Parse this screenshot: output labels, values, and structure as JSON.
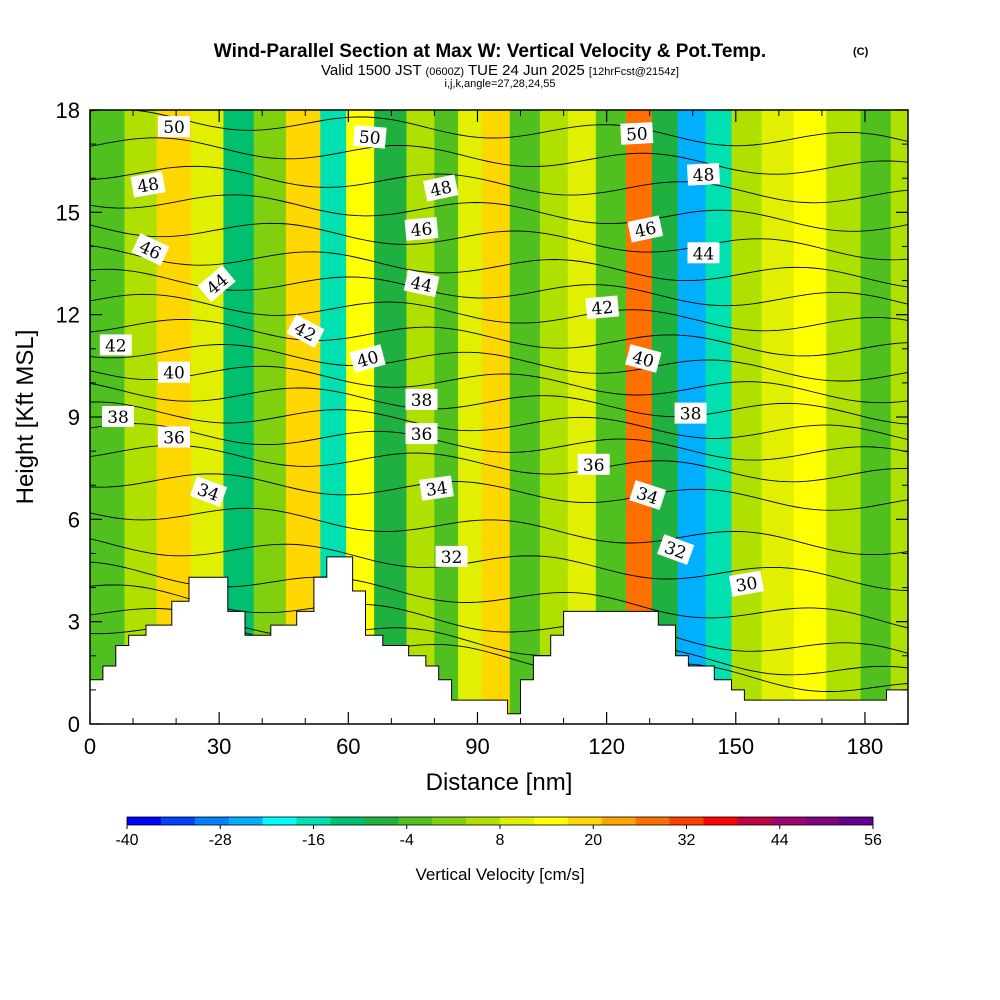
{
  "header": {
    "title": "Wind-Parallel Section at Max W: Vertical Velocity & Pot.Temp.",
    "copyright": "(C)",
    "valid_prefix": "Valid 1500 JST",
    "utc": "(0600Z)",
    "date": "TUE 24 Jun 2025",
    "fcst": "[12hrFcst@2154z]",
    "ijk": "i,j,k,angle=27,28,24,55"
  },
  "chart_data": {
    "type": "heatmap",
    "xlabel": "Distance [nm]",
    "ylabel": "Height [Kft MSL]",
    "xlim": [
      0,
      190
    ],
    "ylim": [
      0,
      18
    ],
    "x_ticks": [
      "0",
      "30",
      "60",
      "90",
      "120",
      "150",
      "180"
    ],
    "y_ticks": [
      "0",
      "3",
      "6",
      "9",
      "12",
      "15",
      "18"
    ],
    "colorbar": {
      "label": "Vertical Velocity [cm/s]",
      "range": [
        -40,
        56
      ],
      "tick_labels": [
        "-40",
        "-28",
        "-16",
        "-4",
        "8",
        "20",
        "32",
        "44",
        "56"
      ],
      "colors": [
        "#0000ff",
        "#0040ff",
        "#0080ff",
        "#00b0ff",
        "#00ffff",
        "#00e0b0",
        "#00c070",
        "#20b040",
        "#50c020",
        "#80d010",
        "#b0e000",
        "#e0f000",
        "#ffff00",
        "#ffd700",
        "#ffa500",
        "#ff7000",
        "#ff4000",
        "#ff0000",
        "#c00040",
        "#a00070",
        "#800080",
        "#600090"
      ]
    },
    "w_columns": [
      {
        "x": 5,
        "w": -2
      },
      {
        "x": 11,
        "w": 4
      },
      {
        "x": 20,
        "w": 18
      },
      {
        "x": 27,
        "w": 8
      },
      {
        "x": 35,
        "w": -10
      },
      {
        "x": 41,
        "w": 2
      },
      {
        "x": 50,
        "w": 20
      },
      {
        "x": 57,
        "w": -14
      },
      {
        "x": 62,
        "w": 16
      },
      {
        "x": 70,
        "w": -6
      },
      {
        "x": 77,
        "w": 6
      },
      {
        "x": 83,
        "w": -4
      },
      {
        "x": 88,
        "w": 8
      },
      {
        "x": 94,
        "w": 18
      },
      {
        "x": 101,
        "w": -4
      },
      {
        "x": 108,
        "w": 4
      },
      {
        "x": 114,
        "w": 10
      },
      {
        "x": 121,
        "w": -2
      },
      {
        "x": 128,
        "w": 26
      },
      {
        "x": 133,
        "w": -8
      },
      {
        "x": 140,
        "w": -26
      },
      {
        "x": 146,
        "w": -14
      },
      {
        "x": 152,
        "w": 4
      },
      {
        "x": 160,
        "w": 8
      },
      {
        "x": 167,
        "w": 14
      },
      {
        "x": 175,
        "w": 6
      },
      {
        "x": 183,
        "w": -4
      },
      {
        "x": 189,
        "w": 4
      }
    ],
    "terrain": [
      {
        "x": 0,
        "z": 1.3
      },
      {
        "x": 3,
        "z": 1.3
      },
      {
        "x": 3,
        "z": 1.7
      },
      {
        "x": 6,
        "z": 1.7
      },
      {
        "x": 6,
        "z": 2.3
      },
      {
        "x": 9,
        "z": 2.3
      },
      {
        "x": 9,
        "z": 2.6
      },
      {
        "x": 13,
        "z": 2.6
      },
      {
        "x": 13,
        "z": 2.9
      },
      {
        "x": 19,
        "z": 2.9
      },
      {
        "x": 19,
        "z": 3.6
      },
      {
        "x": 23,
        "z": 3.6
      },
      {
        "x": 23,
        "z": 4.3
      },
      {
        "x": 32,
        "z": 4.3
      },
      {
        "x": 32,
        "z": 3.3
      },
      {
        "x": 36,
        "z": 3.3
      },
      {
        "x": 36,
        "z": 2.6
      },
      {
        "x": 42,
        "z": 2.6
      },
      {
        "x": 42,
        "z": 2.9
      },
      {
        "x": 48,
        "z": 2.9
      },
      {
        "x": 48,
        "z": 3.3
      },
      {
        "x": 52,
        "z": 3.3
      },
      {
        "x": 52,
        "z": 4.3
      },
      {
        "x": 55,
        "z": 4.3
      },
      {
        "x": 55,
        "z": 4.9
      },
      {
        "x": 61,
        "z": 4.9
      },
      {
        "x": 61,
        "z": 3.9
      },
      {
        "x": 64,
        "z": 3.9
      },
      {
        "x": 64,
        "z": 2.6
      },
      {
        "x": 68,
        "z": 2.6
      },
      {
        "x": 68,
        "z": 2.3
      },
      {
        "x": 74,
        "z": 2.3
      },
      {
        "x": 74,
        "z": 2.0
      },
      {
        "x": 78,
        "z": 2.0
      },
      {
        "x": 78,
        "z": 1.7
      },
      {
        "x": 81,
        "z": 1.7
      },
      {
        "x": 81,
        "z": 1.3
      },
      {
        "x": 84,
        "z": 1.3
      },
      {
        "x": 84,
        "z": 0.7
      },
      {
        "x": 97,
        "z": 0.7
      },
      {
        "x": 97,
        "z": 0.3
      },
      {
        "x": 100,
        "z": 0.3
      },
      {
        "x": 100,
        "z": 1.3
      },
      {
        "x": 103,
        "z": 1.3
      },
      {
        "x": 103,
        "z": 2.0
      },
      {
        "x": 107,
        "z": 2.0
      },
      {
        "x": 107,
        "z": 2.6
      },
      {
        "x": 110,
        "z": 2.6
      },
      {
        "x": 110,
        "z": 3.3
      },
      {
        "x": 132,
        "z": 3.3
      },
      {
        "x": 132,
        "z": 2.9
      },
      {
        "x": 136,
        "z": 2.9
      },
      {
        "x": 136,
        "z": 2.0
      },
      {
        "x": 139,
        "z": 2.0
      },
      {
        "x": 139,
        "z": 1.7
      },
      {
        "x": 145,
        "z": 1.7
      },
      {
        "x": 145,
        "z": 1.3
      },
      {
        "x": 149,
        "z": 1.3
      },
      {
        "x": 149,
        "z": 1.0
      },
      {
        "x": 152,
        "z": 1.0
      },
      {
        "x": 152,
        "z": 0.7
      },
      {
        "x": 185,
        "z": 0.7
      },
      {
        "x": 185,
        "z": 1.0
      },
      {
        "x": 190,
        "z": 1.0
      }
    ],
    "isentropes": [
      {
        "theta": 30,
        "base": 2.9,
        "slope": -0.01
      },
      {
        "theta": 31,
        "base": 3.3,
        "slope": -0.01
      },
      {
        "theta": 32,
        "base": 3.9,
        "slope": -0.01
      },
      {
        "theta": 33,
        "base": 4.5,
        "slope": -0.008
      },
      {
        "theta": 34,
        "base": 5.3,
        "slope": -0.006
      },
      {
        "theta": 35,
        "base": 6.3,
        "slope": -0.006
      },
      {
        "theta": 36,
        "base": 7.2,
        "slope": -0.004
      },
      {
        "theta": 37,
        "base": 8.0,
        "slope": -0.004
      },
      {
        "theta": 38,
        "base": 8.6,
        "slope": -0.004
      },
      {
        "theta": 39,
        "base": 9.2,
        "slope": -0.004
      },
      {
        "theta": 40,
        "base": 9.8,
        "slope": -0.004
      },
      {
        "theta": 41,
        "base": 10.4,
        "slope": -0.004
      },
      {
        "theta": 42,
        "base": 11.0,
        "slope": -0.004
      },
      {
        "theta": 43,
        "base": 11.7,
        "slope": -0.004
      },
      {
        "theta": 44,
        "base": 12.4,
        "slope": -0.004
      },
      {
        "theta": 45,
        "base": 13.1,
        "slope": -0.004
      },
      {
        "theta": 46,
        "base": 13.8,
        "slope": -0.004
      },
      {
        "theta": 47,
        "base": 14.6,
        "slope": -0.004
      },
      {
        "theta": 48,
        "base": 15.4,
        "slope": -0.004
      },
      {
        "theta": 49,
        "base": 16.2,
        "slope": -0.004
      },
      {
        "theta": 50,
        "base": 17.0,
        "slope": -0.004
      },
      {
        "theta": 51,
        "base": 17.8,
        "slope": -0.004
      }
    ],
    "contour_labels": [
      {
        "text": "50",
        "x": 19.5,
        "y": 17.5,
        "angle": 0
      },
      {
        "text": "50",
        "x": 65,
        "y": 17.2,
        "angle": 5
      },
      {
        "text": "50",
        "x": 127,
        "y": 17.3,
        "angle": -3
      },
      {
        "text": "48",
        "x": 13.5,
        "y": 15.8,
        "angle": -10
      },
      {
        "text": "48",
        "x": 81.5,
        "y": 15.7,
        "angle": -12
      },
      {
        "text": "48",
        "x": 142.5,
        "y": 16.1,
        "angle": -3
      },
      {
        "text": "46",
        "x": 14,
        "y": 13.9,
        "angle": 25
      },
      {
        "text": "46",
        "x": 77,
        "y": 14.5,
        "angle": -5
      },
      {
        "text": "46",
        "x": 129,
        "y": 14.5,
        "angle": -12
      },
      {
        "text": "44",
        "x": 29.5,
        "y": 12.9,
        "angle": -40
      },
      {
        "text": "44",
        "x": 77,
        "y": 12.9,
        "angle": 12
      },
      {
        "text": "44",
        "x": 142.5,
        "y": 13.8,
        "angle": 0
      },
      {
        "text": "42",
        "x": 6,
        "y": 11.1,
        "angle": 0
      },
      {
        "text": "42",
        "x": 50,
        "y": 11.5,
        "angle": 28
      },
      {
        "text": "42",
        "x": 119,
        "y": 12.2,
        "angle": -5
      },
      {
        "text": "40",
        "x": 19.5,
        "y": 10.3,
        "angle": 0
      },
      {
        "text": "40",
        "x": 64.5,
        "y": 10.7,
        "angle": -15
      },
      {
        "text": "40",
        "x": 128.5,
        "y": 10.7,
        "angle": 15
      },
      {
        "text": "38",
        "x": 6.5,
        "y": 9.0,
        "angle": 0
      },
      {
        "text": "38",
        "x": 77,
        "y": 9.5,
        "angle": 0
      },
      {
        "text": "38",
        "x": 139.5,
        "y": 9.1,
        "angle": 0
      },
      {
        "text": "36",
        "x": 19.5,
        "y": 8.4,
        "angle": 0
      },
      {
        "text": "36",
        "x": 77,
        "y": 8.5,
        "angle": 0
      },
      {
        "text": "36",
        "x": 117,
        "y": 7.6,
        "angle": 0
      },
      {
        "text": "34",
        "x": 27.5,
        "y": 6.8,
        "angle": 20
      },
      {
        "text": "34",
        "x": 80.5,
        "y": 6.9,
        "angle": -8
      },
      {
        "text": "34",
        "x": 129.5,
        "y": 6.7,
        "angle": 18
      },
      {
        "text": "32",
        "x": 84,
        "y": 4.9,
        "angle": 0
      },
      {
        "text": "32",
        "x": 136,
        "y": 5.1,
        "angle": 20
      },
      {
        "text": "30",
        "x": 152.5,
        "y": 4.1,
        "angle": -10
      }
    ]
  }
}
